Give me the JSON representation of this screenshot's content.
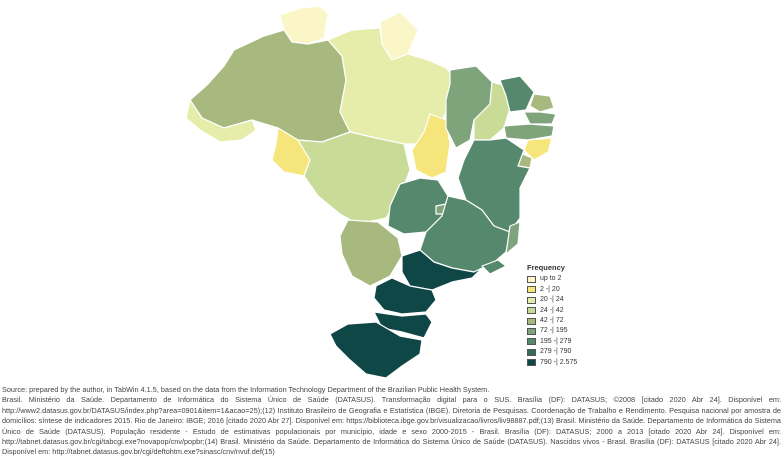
{
  "legend": {
    "title": "Frequency",
    "classes": [
      {
        "label": "up to 2",
        "color": "#fbf6c8"
      },
      {
        "label": "2 -| 20",
        "color": "#f5e57a"
      },
      {
        "label": "20 -| 24",
        "color": "#e6ecaa"
      },
      {
        "label": "24 -| 42",
        "color": "#c8dc97"
      },
      {
        "label": "42 -| 72",
        "color": "#a7b97f"
      },
      {
        "label": "72 -| 195",
        "color": "#7fa37a"
      },
      {
        "label": "195 -| 279",
        "color": "#55886c"
      },
      {
        "label": "279 -| 790",
        "color": "#356b5b"
      },
      {
        "label": "790 -| 2.575",
        "color": "#0f4747"
      }
    ]
  },
  "regions": [
    {
      "id": "RR",
      "class": 0
    },
    {
      "id": "AP",
      "class": 0
    },
    {
      "id": "AM",
      "class": 4
    },
    {
      "id": "PA",
      "class": 2
    },
    {
      "id": "AC",
      "class": 2
    },
    {
      "id": "RO",
      "class": 1
    },
    {
      "id": "MT",
      "class": 3
    },
    {
      "id": "TO",
      "class": 1
    },
    {
      "id": "MA",
      "class": 5
    },
    {
      "id": "PI",
      "class": 3
    },
    {
      "id": "CE",
      "class": 6
    },
    {
      "id": "RN",
      "class": 4
    },
    {
      "id": "PB",
      "class": 5
    },
    {
      "id": "PE",
      "class": 5
    },
    {
      "id": "AL",
      "class": 1
    },
    {
      "id": "SE",
      "class": 4
    },
    {
      "id": "BA",
      "class": 6
    },
    {
      "id": "GO",
      "class": 6
    },
    {
      "id": "DF",
      "class": 5
    },
    {
      "id": "MS",
      "class": 4
    },
    {
      "id": "MG",
      "class": 6
    },
    {
      "id": "ES",
      "class": 5
    },
    {
      "id": "RJ",
      "class": 6
    },
    {
      "id": "SP",
      "class": 8
    },
    {
      "id": "PR",
      "class": 8
    },
    {
      "id": "SC",
      "class": 8
    },
    {
      "id": "RS",
      "class": 8
    }
  ],
  "source": {
    "line1": "Source: prepared by the author, in TabWin 4.1.5, based on the data from the Information Technology Department of the Brazilian Public Health System.",
    "line2": "Brasil. Ministério da Saúde. Departamento de Informática do Sistema Único de Saúde (DATASUS). Transformação digital para o SUS. Brasília (DF): DATASUS; ©2008 [citado 2020 Abr 24]. Disponível em: http://www2.datasus.gov.br/DATASUS/index.php?area=0901&item=1&acao=25);(12) Instituto Brasileiro de Geografia e Estatística (IBGE). Diretoria de Pesquisas. Coordenação de Trabalho e Rendimento. Pesquisa nacional por amostra de domicílios: síntese de indicadores 2015. Rio de Janeiro: IBGE; 2016 [citado 2020 Abr 27]. Disponível em: https://biblioteca.ibge.gov.br/visualizacao/livros/liv98887.pdf;(13) Brasil. Ministério da Saúde. Departamento de Informática do Sistema Único de Saúde (DATASUS). População residente - Estudo de estimativas populacionais por município, idade e sexo 2000-2015 - Brasil. Brasília (DF): DATASUS; 2000 a 2013 [citado 2020 Abr 24]. Disponível em: http://tabnet.datasus.gov.br/cgi/tabcgi.exe?novapop/cnv/popbr;(14) Brasil. Ministério da Saúde. Departamento de Informática do Sistema Único de Saúde (DATASUS). Nascidos vivos - Brasil. Brasília (DF): DATASUS [citado 2020 Abr 24]. Disponível em: http://tabnet.datasus.gov.br/cgi/deftohtm.exe?sinasc/cnv/nvuf.def(15)"
  }
}
